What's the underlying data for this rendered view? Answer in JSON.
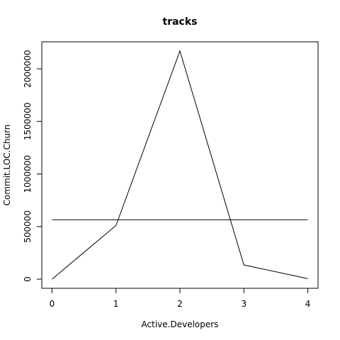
{
  "chart_data": {
    "type": "line",
    "title": "tracks",
    "xlabel": "Active.Developers",
    "ylabel": "Commit.LOC.Churn",
    "xlim": [
      -0.16,
      4.16
    ],
    "ylim": [
      -87000,
      2257000
    ],
    "x_ticks": [
      0,
      1,
      2,
      3,
      4
    ],
    "y_ticks": [
      0,
      500000,
      1000000,
      1500000,
      2000000
    ],
    "series": [
      {
        "x": [
          0,
          1,
          2,
          3,
          4
        ],
        "values": [
          0,
          510000,
          2170000,
          135000,
          5000
        ]
      }
    ],
    "reference_lines": [
      {
        "orientation": "horizontal",
        "value": 565000
      }
    ],
    "grid": false,
    "legend": "none"
  }
}
